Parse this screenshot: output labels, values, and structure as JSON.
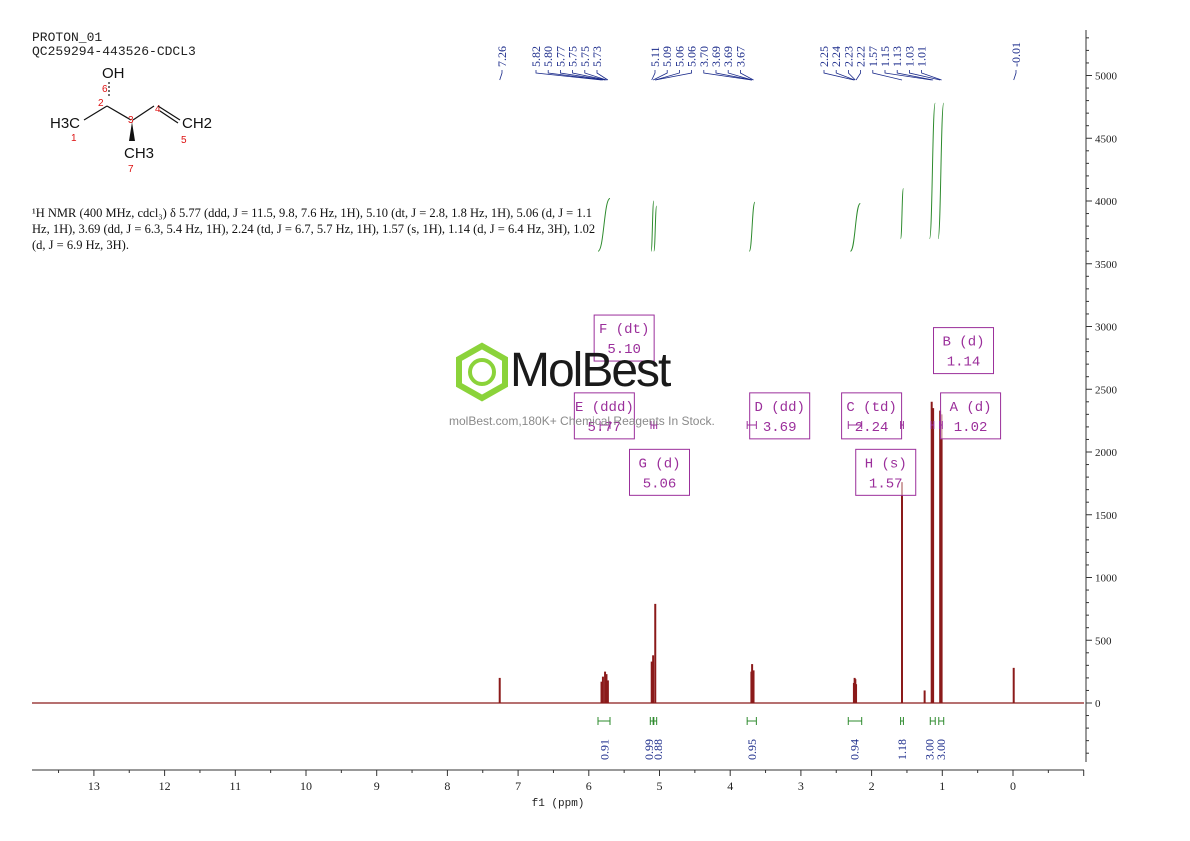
{
  "header": {
    "line1": "PROTON_01",
    "line2": "QC259294-443526-CDCL3"
  },
  "structure": {
    "oh": "OH",
    "h3c": "H3C",
    "ch2": "CH2",
    "ch3": "CH3",
    "numbers": [
      "1",
      "2",
      "3",
      "4",
      "5",
      "6",
      "7"
    ]
  },
  "description": "¹H NMR (400 MHz, cdcl₃) δ 5.77 (ddd, J = 11.5, 9.8, 7.6 Hz, 1H), 5.10 (dt, J = 2.8, 1.8 Hz, 1H), 5.06 (d, J = 1.1 Hz, 1H), 3.69 (dd, J = 6.3, 5.4 Hz, 1H), 2.24 (td, J = 6.7, 5.7 Hz, 1H), 1.57 (s, 1H), 1.14 (d, J = 6.4 Hz, 3H), 1.02 (d, J = 6.9 Hz, 3H).",
  "watermark": {
    "logo": "MolBest",
    "tagline": "molBest.com,180K+ Chemical Reagents In Stock."
  },
  "chart_data": {
    "type": "line",
    "xlabel": "f1 (ppm)",
    "ylabel": "",
    "xlim": [
      14,
      -1
    ],
    "ylim": [
      -500,
      5400
    ],
    "x_ticks": [
      13,
      12,
      11,
      10,
      9,
      8,
      7,
      6,
      5,
      4,
      3,
      2,
      1,
      0
    ],
    "y_ticks": [
      0,
      500,
      1000,
      1500,
      2000,
      2500,
      3000,
      3500,
      4000,
      4500,
      5000
    ],
    "peak_labels": [
      "7.26",
      "5.82",
      "5.80",
      "5.77",
      "5.75",
      "5.75",
      "5.73",
      "5.11",
      "5.09",
      "5.06",
      "5.06",
      "3.70",
      "3.69",
      "3.69",
      "3.67",
      "2.25",
      "2.24",
      "2.23",
      "2.22",
      "1.57",
      "1.15",
      "1.13",
      "1.03",
      "1.01",
      "-0.01"
    ],
    "peaks": [
      {
        "x": 7.26,
        "y": 200
      },
      {
        "x": 5.82,
        "y": 170
      },
      {
        "x": 5.8,
        "y": 210
      },
      {
        "x": 5.77,
        "y": 250
      },
      {
        "x": 5.75,
        "y": 230
      },
      {
        "x": 5.73,
        "y": 180
      },
      {
        "x": 5.11,
        "y": 330
      },
      {
        "x": 5.09,
        "y": 380
      },
      {
        "x": 5.06,
        "y": 790
      },
      {
        "x": 3.7,
        "y": 250
      },
      {
        "x": 3.69,
        "y": 310
      },
      {
        "x": 3.67,
        "y": 260
      },
      {
        "x": 2.25,
        "y": 160
      },
      {
        "x": 2.24,
        "y": 200
      },
      {
        "x": 2.23,
        "y": 190
      },
      {
        "x": 2.22,
        "y": 150
      },
      {
        "x": 1.57,
        "y": 1760
      },
      {
        "x": 1.15,
        "y": 2400
      },
      {
        "x": 1.13,
        "y": 2350
      },
      {
        "x": 1.03,
        "y": 2330
      },
      {
        "x": 1.01,
        "y": 2300
      },
      {
        "x": 1.25,
        "y": 100
      },
      {
        "x": -0.01,
        "y": 280
      }
    ],
    "integration_curves": [
      {
        "x1": 5.87,
        "x2": 5.7,
        "y1": 3600,
        "y2": 4020
      },
      {
        "x1": 5.12,
        "x2": 5.08,
        "y1": 3600,
        "y2": 4000
      },
      {
        "x1": 5.08,
        "x2": 5.04,
        "y1": 3600,
        "y2": 3960
      },
      {
        "x1": 3.73,
        "x2": 3.65,
        "y1": 3600,
        "y2": 3990
      },
      {
        "x1": 2.3,
        "x2": 2.16,
        "y1": 3600,
        "y2": 3980
      },
      {
        "x1": 1.59,
        "x2": 1.55,
        "y1": 3700,
        "y2": 4100
      },
      {
        "x1": 1.18,
        "x2": 1.1,
        "y1": 3700,
        "y2": 4780
      },
      {
        "x1": 1.06,
        "x2": 0.98,
        "y1": 3700,
        "y2": 4780
      }
    ],
    "integrals": [
      {
        "x": 5.78,
        "x1": 5.87,
        "x2": 5.7,
        "label": "0.91"
      },
      {
        "x": 5.15,
        "x1": 5.13,
        "x2": 5.09,
        "label": "0.99"
      },
      {
        "x": 5.02,
        "x1": 5.08,
        "x2": 5.04,
        "label": "0.88"
      },
      {
        "x": 3.69,
        "x1": 3.76,
        "x2": 3.63,
        "label": "0.95"
      },
      {
        "x": 2.24,
        "x1": 2.33,
        "x2": 2.14,
        "label": "0.94"
      },
      {
        "x": 1.57,
        "x1": 1.59,
        "x2": 1.55,
        "label": "1.18"
      },
      {
        "x": 1.18,
        "x1": 1.17,
        "x2": 1.1,
        "label": "3.00"
      },
      {
        "x": 1.02,
        "x1": 1.05,
        "x2": 0.98,
        "label": "3.00"
      }
    ],
    "multiplets": [
      {
        "name": "F (dt)",
        "value": "5.10",
        "bx": 5.5,
        "by": 2900,
        "range": [
          5.12,
          5.08
        ]
      },
      {
        "name": "E (ddd)",
        "value": "5.77",
        "bx": 5.78,
        "by": 2280,
        "range": [
          5.84,
          5.7
        ]
      },
      {
        "name": "G (d)",
        "value": "5.06",
        "bx": 5.0,
        "by": 1830,
        "range": [
          5.08,
          5.04
        ]
      },
      {
        "name": "D (dd)",
        "value": "3.69",
        "bx": 3.3,
        "by": 2280,
        "range": [
          3.76,
          3.63
        ]
      },
      {
        "name": "C (td)",
        "value": "2.24",
        "bx": 2.0,
        "by": 2280,
        "range": [
          2.33,
          2.14
        ]
      },
      {
        "name": "H (s)",
        "value": "1.57",
        "bx": 1.8,
        "by": 1830,
        "range": [
          1.59,
          1.55
        ]
      },
      {
        "name": "B (d)",
        "value": "1.14",
        "bx": 0.7,
        "by": 2800,
        "range": [
          1.16,
          1.12
        ]
      },
      {
        "name": "A (d)",
        "value": "1.02",
        "bx": 0.6,
        "by": 2280,
        "range": [
          1.04,
          1.0
        ]
      }
    ]
  }
}
